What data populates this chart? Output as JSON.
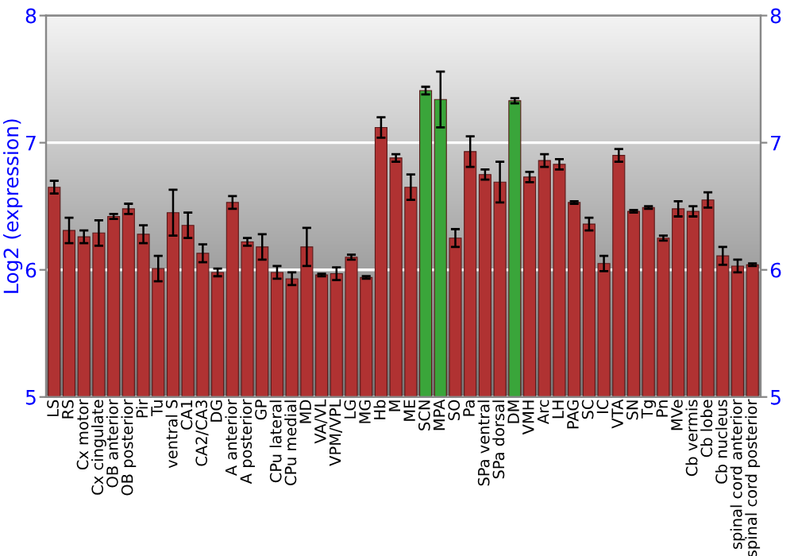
{
  "chart_data": {
    "type": "bar",
    "ylabel": "Log2 (expression)",
    "categories": [
      "LS",
      "RS",
      "Cx motor",
      "Cx cingulate",
      "OB anterior",
      "OB posterior",
      "Pir",
      "Tu",
      "ventral S",
      "CA1",
      "CA2/CA3",
      "DG",
      "A anterior",
      "A posterior",
      "GP",
      "CPu lateral",
      "CPu medial",
      "MD",
      "VA/VL",
      "VPM/VPL",
      "LG",
      "MG",
      "Hb",
      "M",
      "ME",
      "SCN",
      "MPA",
      "SO",
      "Pa",
      "SPa ventral",
      "SPa dorsal",
      "DM",
      "VMH",
      "Arc",
      "LH",
      "PAG",
      "SC",
      "IC",
      "VTA",
      "SN",
      "Tg",
      "Pn",
      "MVe",
      "Cb vermis",
      "Cb lobe",
      "Cb nucleus",
      "spinal cord anterior",
      "spinal cord posterior"
    ],
    "values": [
      6.65,
      6.31,
      6.26,
      6.29,
      6.42,
      6.48,
      6.28,
      6.01,
      6.45,
      6.35,
      6.13,
      5.98,
      6.53,
      6.22,
      6.18,
      5.98,
      5.93,
      6.18,
      5.96,
      5.97,
      6.1,
      5.94,
      7.12,
      6.88,
      6.65,
      7.41,
      7.34,
      6.25,
      6.93,
      6.75,
      6.69,
      7.33,
      6.73,
      6.86,
      6.83,
      6.53,
      6.36,
      6.05,
      6.9,
      6.46,
      6.49,
      6.25,
      6.48,
      6.46,
      6.55,
      6.11,
      6.03,
      6.04
    ],
    "errors": [
      0.05,
      0.1,
      0.05,
      0.1,
      0.02,
      0.04,
      0.07,
      0.1,
      0.18,
      0.1,
      0.07,
      0.03,
      0.05,
      0.03,
      0.1,
      0.05,
      0.05,
      0.15,
      0.01,
      0.05,
      0.02,
      0.01,
      0.08,
      0.03,
      0.1,
      0.03,
      0.22,
      0.07,
      0.12,
      0.04,
      0.16,
      0.02,
      0.04,
      0.05,
      0.04,
      0.01,
      0.05,
      0.06,
      0.05,
      0.01,
      0.01,
      0.02,
      0.06,
      0.04,
      0.06,
      0.07,
      0.05,
      0.01
    ],
    "colors": [
      "#b03232",
      "#b03232",
      "#b03232",
      "#b03232",
      "#b03232",
      "#b03232",
      "#b03232",
      "#b03232",
      "#b03232",
      "#b03232",
      "#b03232",
      "#b03232",
      "#b03232",
      "#b03232",
      "#b03232",
      "#b03232",
      "#b03232",
      "#b03232",
      "#b03232",
      "#b03232",
      "#b03232",
      "#b03232",
      "#b03232",
      "#b03232",
      "#b03232",
      "#3aa53a",
      "#3aa53a",
      "#b03232",
      "#b03232",
      "#b03232",
      "#b03232",
      "#3aa53a",
      "#b03232",
      "#b03232",
      "#b03232",
      "#b03232",
      "#b03232",
      "#b03232",
      "#b03232",
      "#b03232",
      "#b03232",
      "#b03232",
      "#b03232",
      "#b03232",
      "#b03232",
      "#b03232",
      "#b03232",
      "#b03232"
    ],
    "ylim": [
      5,
      8
    ],
    "yticks": [
      5,
      6,
      7,
      8
    ],
    "y2lim": [
      5,
      8
    ],
    "y2ticks": [
      5,
      6,
      7,
      8
    ],
    "grid": "y"
  }
}
